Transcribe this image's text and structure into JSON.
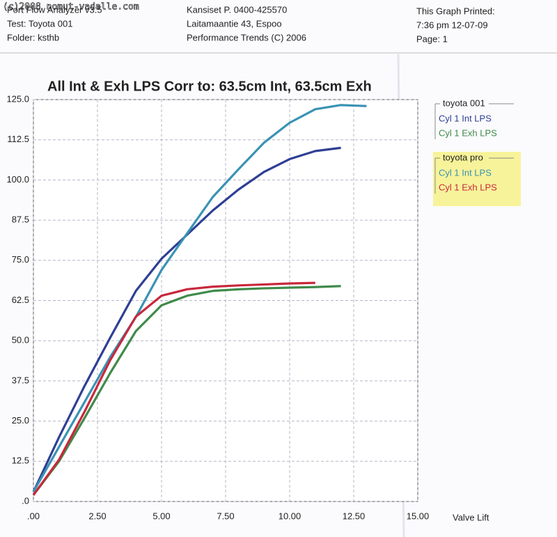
{
  "watermark": "(c)2008 nomut-vadalle.com",
  "header": {
    "left": [
      "Port Flow Analyzer v3.5",
      "Test: Toyota 001",
      "Folder: ksthb"
    ],
    "middle": [
      "Kansiset   P. 0400-425570",
      "Laitamaantie 43, Espoo",
      "Performance Trends (C) 2006"
    ],
    "right": [
      "This Graph Printed:",
      "7:36 pm 12-07-09",
      "Page: 1"
    ]
  },
  "chart_data": {
    "type": "line",
    "title": "All Int & Exh LPS   Corr to: 63.5cm Int, 63.5cm Exh",
    "x_label": "Valve Lift",
    "x": [
      0,
      1,
      2,
      3,
      4,
      5,
      6,
      7,
      8,
      9,
      10,
      11,
      12,
      13
    ],
    "xlim": [
      0,
      15
    ],
    "xticks": [
      {
        "value": 0,
        "label": ".00"
      },
      {
        "value": 2.5,
        "label": "2.50"
      },
      {
        "value": 5,
        "label": "5.00"
      },
      {
        "value": 7.5,
        "label": "7.50"
      },
      {
        "value": 10,
        "label": "10.00"
      },
      {
        "value": 12.5,
        "label": "12.50"
      },
      {
        "value": 15,
        "label": "15.00"
      }
    ],
    "ylim": [
      0,
      125
    ],
    "yticks": [
      {
        "value": 0,
        "label": ".0"
      },
      12.5,
      {
        "value": 25,
        "label": "25.0"
      },
      37.5,
      {
        "value": 50,
        "label": "50.0"
      },
      62.5,
      {
        "value": 75,
        "label": "75.0"
      },
      87.5,
      {
        "value": 100,
        "label": "100.0"
      },
      112.5,
      {
        "value": 125,
        "label": "125.0"
      }
    ],
    "grid": true,
    "groups": [
      {
        "name": "toyota 001",
        "series": [
          {
            "name": "Cyl 1 Int LPS",
            "color": "#2e3f94",
            "values": [
              3,
              20,
              36,
              51,
              65.5,
              75.5,
              83,
              90.5,
              97,
              102.5,
              106.5,
              109,
              110,
              null
            ]
          },
          {
            "name": "Cyl 1 Exh LPS",
            "color": "#3f8a4a",
            "values": [
              2,
              12.5,
              26,
              40,
              53,
              61,
              64,
              65.5,
              66,
              66.3,
              66.5,
              66.7,
              67,
              null
            ]
          }
        ]
      },
      {
        "name": "toyota pro",
        "series": [
          {
            "name": "Cyl 1 Int LPS",
            "color": "#3a92b4",
            "values": [
              3,
              17,
              31,
              45,
              57.4,
              72,
              83.4,
              94.7,
              103.3,
              111.6,
              117.8,
              122,
              123.3,
              123
            ]
          },
          {
            "name": "Cyl 1 Exh LPS",
            "color": "#c8283c",
            "values": [
              2,
              13,
              28,
              44,
              57.5,
              64,
              66,
              66.8,
              67.2,
              67.5,
              67.8,
              68,
              null,
              null
            ]
          }
        ]
      }
    ]
  }
}
